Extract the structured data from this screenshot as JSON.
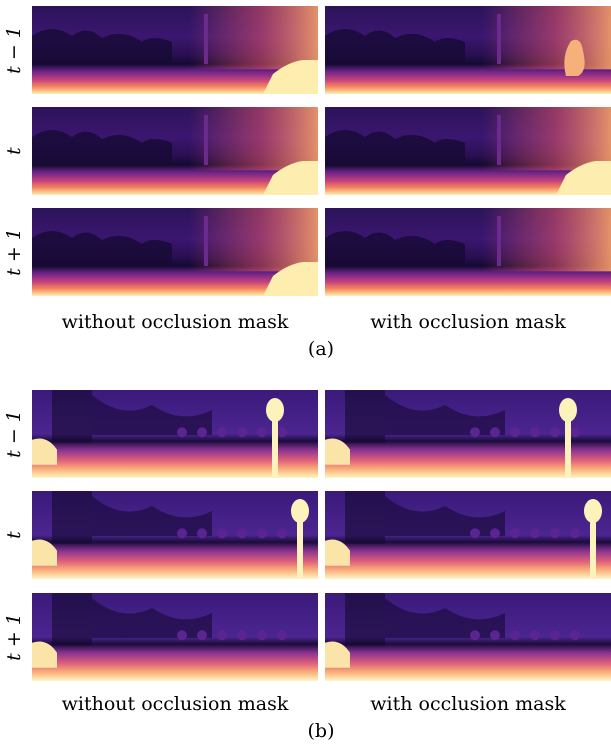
{
  "panels": [
    {
      "rows": [
        "t − 1",
        "t",
        "t + 1"
      ],
      "columns": [
        "without occlusion mask",
        "with occlusion mask"
      ],
      "label": "(a)"
    },
    {
      "rows": [
        "t − 1",
        "t",
        "t + 1"
      ],
      "columns": [
        "without occlusion mask",
        "with occlusion mask"
      ],
      "label": "(b)"
    }
  ]
}
